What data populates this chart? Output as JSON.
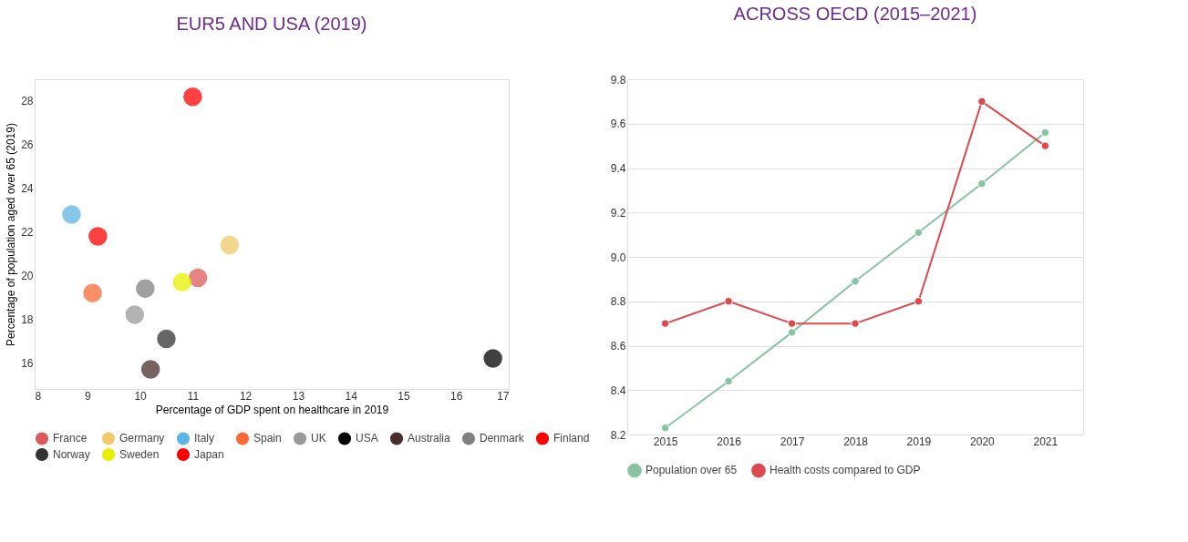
{
  "chart_data": [
    {
      "type": "scatter",
      "title": "EUR5 AND USA (2019)",
      "xlabel": "Percentage of GDP spent on healthcare in 2019",
      "ylabel": "Percentage of population aged over 65 (2019)",
      "xlim": [
        8,
        17
      ],
      "ylim": [
        14.8,
        29
      ],
      "xticks": [
        8,
        9,
        10,
        11,
        12,
        13,
        14,
        15,
        16,
        17
      ],
      "yticks": [
        16,
        18,
        20,
        22,
        24,
        26,
        28
      ],
      "grid": false,
      "legend": "bottom",
      "marker": "circle",
      "series": [
        {
          "name": "France",
          "color": "#dc5a5f",
          "x": [
            11.1
          ],
          "values": [
            19.9
          ]
        },
        {
          "name": "Germany",
          "color": "#f0c96a",
          "x": [
            11.7
          ],
          "values": [
            21.4
          ]
        },
        {
          "name": "Italy",
          "color": "#5db5e5",
          "x": [
            8.7
          ],
          "values": [
            22.8
          ]
        },
        {
          "name": "Spain",
          "color": "#fb6a36",
          "x": [
            9.1
          ],
          "values": [
            19.2
          ]
        },
        {
          "name": "UK",
          "color": "#999999",
          "x": [
            9.9
          ],
          "values": [
            18.2
          ]
        },
        {
          "name": "USA",
          "color": "#000000",
          "x": [
            16.7
          ],
          "values": [
            16.2
          ]
        },
        {
          "name": "Australia",
          "color": "#4a2c2c",
          "x": [
            10.2
          ],
          "values": [
            15.7
          ]
        },
        {
          "name": "Denmark",
          "color": "#808080",
          "x": [
            10.1
          ],
          "values": [
            19.4
          ]
        },
        {
          "name": "Finland",
          "color": "#ff0000",
          "x": [
            9.2
          ],
          "values": [
            21.8
          ]
        },
        {
          "name": "Norway",
          "color": "#333333",
          "x": [
            10.5
          ],
          "values": [
            17.1
          ]
        },
        {
          "name": "Sweden",
          "color": "#e6f000",
          "x": [
            10.8
          ],
          "values": [
            19.7
          ]
        },
        {
          "name": "Japan",
          "color": "#ff0000",
          "x": [
            11.0
          ],
          "values": [
            28.2
          ]
        }
      ]
    },
    {
      "type": "line",
      "title": "ACROSS OECD (2015–2021)",
      "categories": [
        "2015",
        "2016",
        "2017",
        "2018",
        "2019",
        "2020",
        "2021"
      ],
      "ylim": [
        8.2,
        9.8
      ],
      "yticks": [
        8.2,
        8.4,
        8.6,
        8.8,
        {
          "value": 9.0,
          "label": "9.0"
        },
        9.2,
        9.4,
        9.6,
        9.8
      ],
      "grid": "y",
      "legend": "bottom",
      "marker": "circle",
      "line_style": "solid",
      "series": [
        {
          "name": "Population over 65",
          "color": "#88c4a4",
          "values": [
            8.23,
            8.44,
            8.66,
            8.89,
            9.11,
            9.33,
            9.56
          ]
        },
        {
          "name": "Health costs compared to GDP",
          "color": "#dc4a4f",
          "values": [
            8.7,
            8.8,
            8.7,
            8.7,
            8.8,
            9.7,
            9.5
          ]
        }
      ]
    }
  ]
}
